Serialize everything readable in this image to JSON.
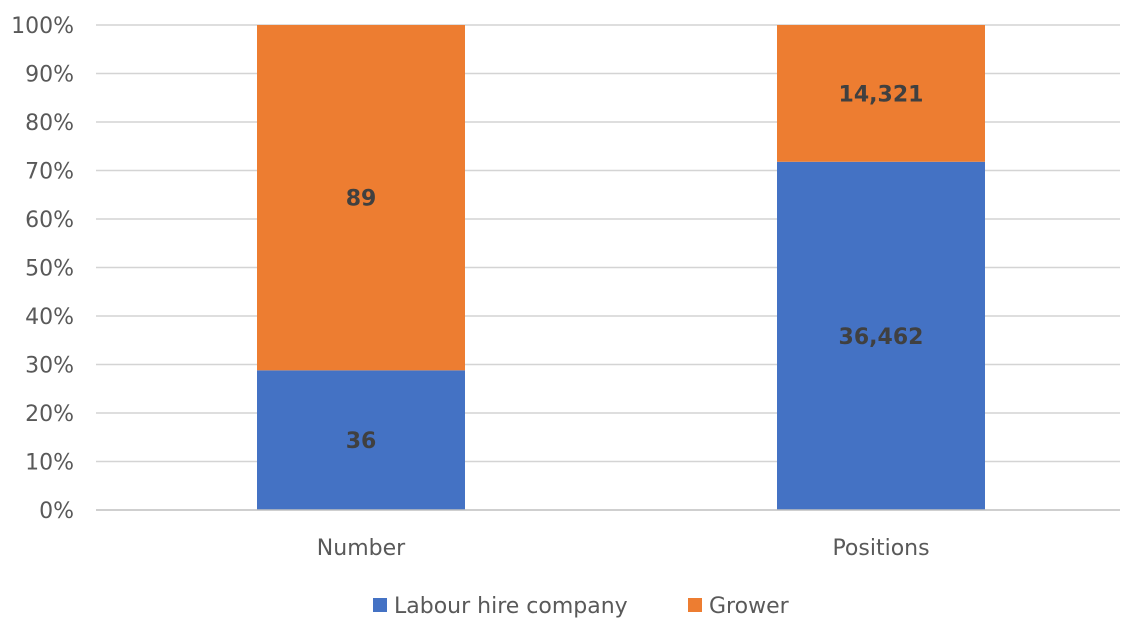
{
  "chart_data": {
    "type": "bar",
    "stacked": true,
    "normalized": true,
    "categories": [
      "Number",
      "Positions"
    ],
    "series": [
      {
        "name": "Labour hire company",
        "values": [
          36,
          36462
        ],
        "labels": [
          "36",
          "36,462"
        ],
        "color": "#4472C4"
      },
      {
        "name": "Grower",
        "values": [
          89,
          14321
        ],
        "labels": [
          "89",
          "14,321"
        ],
        "color": "#ED7D31"
      }
    ],
    "yticks": [
      "0%",
      "10%",
      "20%",
      "30%",
      "40%",
      "50%",
      "60%",
      "70%",
      "80%",
      "90%",
      "100%"
    ],
    "ylim": [
      0,
      100
    ],
    "grid": true,
    "legend_position": "bottom"
  }
}
